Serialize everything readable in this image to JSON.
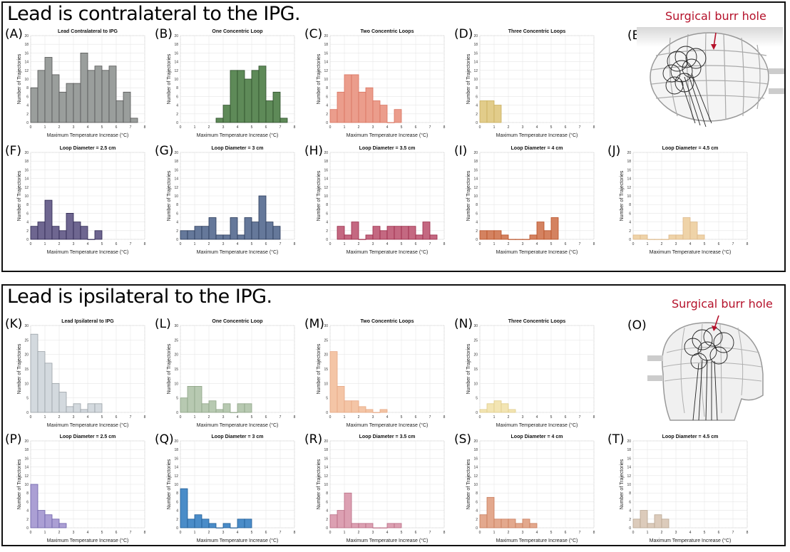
{
  "sections": [
    {
      "title": "Lead is contralateral to the IPG.",
      "head_label": "(E)",
      "burr_label": "Surgical burr hole"
    },
    {
      "title": "Lead is ipsilateral to the IPG.",
      "head_label": "(O)",
      "burr_label": "Surgical burr hole"
    }
  ],
  "chart_data": [
    {
      "id": "A",
      "label": "(A)",
      "type": "bar",
      "title": "Lead Contralateral to IPG",
      "xlabel": "Maximum Temperature Increase (°C)",
      "ylabel": "Number of Trajectories",
      "xlim": [
        0,
        8
      ],
      "ylim": [
        0,
        20
      ],
      "yticks": [
        0,
        2,
        4,
        6,
        8,
        10,
        12,
        14,
        16,
        18,
        20
      ],
      "bin_width": 0.5,
      "bin_start": 0,
      "values": [
        8,
        12,
        15,
        11,
        7,
        9,
        9,
        16,
        12,
        13,
        12,
        13,
        5,
        7,
        1
      ],
      "color": "#9a9e9c",
      "edge": "#555"
    },
    {
      "id": "B",
      "label": "(B)",
      "type": "bar",
      "title": "One Concentric Loop",
      "xlabel": "Maximum Temperature Increase (°C)",
      "ylabel": "Number of Trajectories",
      "xlim": [
        0,
        8
      ],
      "ylim": [
        0,
        20
      ],
      "yticks": [
        0,
        2,
        4,
        6,
        8,
        10,
        12,
        14,
        16,
        18,
        20
      ],
      "bin_width": 0.5,
      "bin_start": 2.5,
      "values": [
        1,
        4,
        12,
        12,
        10,
        12,
        13,
        5,
        7,
        1
      ],
      "color": "#5e8a58",
      "edge": "#2f4f2c"
    },
    {
      "id": "C",
      "label": "(C)",
      "type": "bar",
      "title": "Two Concentric Loops",
      "xlabel": "Maximum Temperature Increase (°C)",
      "ylabel": "Number of Trajectories",
      "xlim": [
        0,
        8
      ],
      "ylim": [
        0,
        20
      ],
      "yticks": [
        0,
        2,
        4,
        6,
        8,
        10,
        12,
        14,
        16,
        18,
        20
      ],
      "bin_width": 0.5,
      "bin_start": 0,
      "values": [
        3,
        7,
        11,
        11,
        7,
        8,
        5,
        4,
        0,
        3
      ],
      "color": "#eb9d8c",
      "edge": "#d9735f"
    },
    {
      "id": "D",
      "label": "(D)",
      "type": "bar",
      "title": "Three Concentric Loops",
      "xlabel": "Maximum Temperature Increase (°C)",
      "ylabel": "Number of Trajectories",
      "xlim": [
        0,
        8
      ],
      "ylim": [
        0,
        20
      ],
      "yticks": [
        0,
        2,
        4,
        6,
        8,
        10,
        12,
        14,
        16,
        18,
        20
      ],
      "bin_width": 0.5,
      "bin_start": 0,
      "values": [
        5,
        5,
        4
      ],
      "color": "#e2cc8a",
      "edge": "#c9ae5c"
    },
    {
      "id": "F",
      "label": "(F)",
      "type": "bar",
      "title": "Loop Diameter = 2.5 cm",
      "xlabel": "Maximum Temperature Increase (°C)",
      "ylabel": "Number of Trajectories",
      "xlim": [
        0,
        8
      ],
      "ylim": [
        0,
        20
      ],
      "yticks": [
        0,
        2,
        4,
        6,
        8,
        10,
        12,
        14,
        16,
        18,
        20
      ],
      "bin_width": 0.5,
      "bin_start": 0,
      "values": [
        3,
        4,
        9,
        3,
        2,
        6,
        4,
        3,
        0,
        2
      ],
      "color": "#6e6690",
      "edge": "#2c2550"
    },
    {
      "id": "G",
      "label": "(G)",
      "type": "bar",
      "title": "Loop Diameter = 3 cm",
      "xlabel": "Maximum Temperature Increase (°C)",
      "ylabel": "Number of Trajectories",
      "xlim": [
        0,
        8
      ],
      "ylim": [
        0,
        20
      ],
      "yticks": [
        0,
        2,
        4,
        6,
        8,
        10,
        12,
        14,
        16,
        18,
        20
      ],
      "bin_width": 0.5,
      "bin_start": 0,
      "values": [
        2,
        2,
        3,
        3,
        5,
        1,
        1,
        5,
        1,
        5,
        4,
        10,
        4,
        3
      ],
      "color": "#65789a",
      "edge": "#2a3a5a"
    },
    {
      "id": "H",
      "label": "(H)",
      "type": "bar",
      "title": "Loop Diameter = 3.5 cm",
      "xlabel": "Maximum Temperature Increase (°C)",
      "ylabel": "Number of Trajectories",
      "xlim": [
        0,
        8
      ],
      "ylim": [
        0,
        20
      ],
      "yticks": [
        0,
        2,
        4,
        6,
        8,
        10,
        12,
        14,
        16,
        18,
        20
      ],
      "bin_width": 0.5,
      "bin_start": 0.5,
      "values": [
        3,
        1,
        4,
        0,
        1,
        3,
        2,
        3,
        3,
        3,
        3,
        1,
        4,
        1
      ],
      "color": "#c46881",
      "edge": "#9a2846"
    },
    {
      "id": "I",
      "label": "(I)",
      "type": "bar",
      "title": "Loop Diameter = 4 cm",
      "xlabel": "Maximum Temperature Increase (°C)",
      "ylabel": "Number of Trajectories",
      "xlim": [
        0,
        8
      ],
      "ylim": [
        0,
        20
      ],
      "yticks": [
        0,
        2,
        4,
        6,
        8,
        10,
        12,
        14,
        16,
        18,
        20
      ],
      "bin_width": 0.5,
      "bin_start": 0,
      "values": [
        2,
        2,
        2,
        1,
        0,
        0,
        0,
        1,
        4,
        2,
        5
      ],
      "color": "#d48260",
      "edge": "#b84f25"
    },
    {
      "id": "J",
      "label": "(J)",
      "type": "bar",
      "title": "Loop Diameter = 4.5 cm",
      "xlabel": "Maximum Temperature Increase (°C)",
      "ylabel": "Number of Trajectories",
      "xlim": [
        0,
        8
      ],
      "ylim": [
        0,
        20
      ],
      "yticks": [
        0,
        2,
        4,
        6,
        8,
        10,
        12,
        14,
        16,
        18,
        20
      ],
      "bin_width": 0.5,
      "bin_start": 0,
      "values": [
        1,
        1,
        0,
        0,
        0,
        1,
        1,
        5,
        4,
        1
      ],
      "color": "#efd3a8",
      "edge": "#dcb889"
    },
    {
      "id": "K",
      "label": "(K)",
      "type": "bar",
      "title": "Lead Ipsilateral to IPG",
      "xlabel": "Maximum Temperature Increase (°C)",
      "ylabel": "Number of Trajectories",
      "xlim": [
        0,
        8
      ],
      "ylim": [
        0,
        30
      ],
      "yticks": [
        0,
        5,
        10,
        15,
        20,
        25,
        30
      ],
      "bin_width": 0.5,
      "bin_start": 0,
      "values": [
        27,
        21,
        17,
        10,
        7,
        2,
        3,
        1,
        3,
        3
      ],
      "color": "#d3d9de",
      "edge": "#9aa1a6"
    },
    {
      "id": "L",
      "label": "(L)",
      "type": "bar",
      "title": "One Concentric Loop",
      "xlabel": "Maximum Temperature Increase (°C)",
      "ylabel": "Number of Trajectories",
      "xlim": [
        0,
        8
      ],
      "ylim": [
        0,
        30
      ],
      "yticks": [
        0,
        5,
        10,
        15,
        20,
        25,
        30
      ],
      "bin_width": 0.5,
      "bin_start": 0,
      "values": [
        5,
        9,
        9,
        3,
        4,
        1,
        3,
        0,
        3,
        3
      ],
      "color": "#b7c9b1",
      "edge": "#8ea486"
    },
    {
      "id": "M",
      "label": "(M)",
      "type": "bar",
      "title": "Two Concentric Loops",
      "xlabel": "Maximum Temperature Increase (°C)",
      "ylabel": "Number of Trajectories",
      "xlim": [
        0,
        8
      ],
      "ylim": [
        0,
        30
      ],
      "yticks": [
        0,
        5,
        10,
        15,
        20,
        25,
        30
      ],
      "bin_width": 0.5,
      "bin_start": 0,
      "values": [
        21,
        9,
        4,
        4,
        2,
        1,
        0,
        1
      ],
      "color": "#f4c5a6",
      "edge": "#e7a783"
    },
    {
      "id": "N",
      "label": "(N)",
      "type": "bar",
      "title": "Three Concentric Loops",
      "xlabel": "Maximum Temperature Increase (°C)",
      "ylabel": "Number of Trajectories",
      "xlim": [
        0,
        8
      ],
      "ylim": [
        0,
        30
      ],
      "yticks": [
        0,
        5,
        10,
        15,
        20,
        25,
        30
      ],
      "bin_width": 0.5,
      "bin_start": 0,
      "values": [
        1,
        3,
        4,
        3,
        1
      ],
      "color": "#f3e5b3",
      "edge": "#dfcc8a"
    },
    {
      "id": "P",
      "label": "(P)",
      "type": "bar",
      "title": "Loop Diameter = 2.5 cm",
      "xlabel": "Maximum Temperature Increase (°C)",
      "ylabel": "Number of Trajectories",
      "xlim": [
        0,
        8
      ],
      "ylim": [
        0,
        20
      ],
      "yticks": [
        0,
        2,
        4,
        6,
        8,
        10,
        12,
        14,
        16,
        18,
        20
      ],
      "bin_width": 0.5,
      "bin_start": 0,
      "values": [
        10,
        4,
        3,
        2,
        1
      ],
      "color": "#ab9fd4",
      "edge": "#6c5fa8"
    },
    {
      "id": "Q",
      "label": "(Q)",
      "type": "bar",
      "title": "Loop Diameter = 3 cm",
      "xlabel": "Maximum Temperature Increase (°C)",
      "ylabel": "Number of Trajectories",
      "xlim": [
        0,
        8
      ],
      "ylim": [
        0,
        20
      ],
      "yticks": [
        0,
        2,
        4,
        6,
        8,
        10,
        12,
        14,
        16,
        18,
        20
      ],
      "bin_width": 0.5,
      "bin_start": 0,
      "values": [
        9,
        2,
        3,
        2,
        1,
        0,
        1,
        0,
        2,
        2
      ],
      "color": "#4a8cc8",
      "edge": "#1f5c95"
    },
    {
      "id": "R",
      "label": "(R)",
      "type": "bar",
      "title": "Loop Diameter = 3.5 cm",
      "xlabel": "Maximum Temperature Increase (°C)",
      "ylabel": "Number of Trajectories",
      "xlim": [
        0,
        8
      ],
      "ylim": [
        0,
        20
      ],
      "yticks": [
        0,
        2,
        4,
        6,
        8,
        10,
        12,
        14,
        16,
        18,
        20
      ],
      "bin_width": 0.5,
      "bin_start": 0,
      "values": [
        3,
        4,
        8,
        1,
        1,
        1,
        0,
        0,
        1,
        1
      ],
      "color": "#dca0b2",
      "edge": "#b86a82"
    },
    {
      "id": "S",
      "label": "(S)",
      "type": "bar",
      "title": "Loop Diameter = 4 cm",
      "xlabel": "Maximum Temperature Increase (°C)",
      "ylabel": "Number of Trajectories",
      "xlim": [
        0,
        8
      ],
      "ylim": [
        0,
        20
      ],
      "yticks": [
        0,
        2,
        4,
        6,
        8,
        10,
        12,
        14,
        16,
        18,
        20
      ],
      "bin_width": 0.5,
      "bin_start": 0,
      "values": [
        3,
        7,
        2,
        2,
        2,
        1,
        2,
        1
      ],
      "color": "#e3a88d",
      "edge": "#c77a5a"
    },
    {
      "id": "T",
      "label": "(T)",
      "type": "bar",
      "title": "Loop Diameter = 4.5 cm",
      "xlabel": "Maximum Temperature Increase (°C)",
      "ylabel": "Number of Trajectories",
      "xlim": [
        0,
        8
      ],
      "ylim": [
        0,
        20
      ],
      "yticks": [
        0,
        2,
        4,
        6,
        8,
        10,
        12,
        14,
        16,
        18,
        20
      ],
      "bin_width": 0.5,
      "bin_start": 0,
      "values": [
        2,
        4,
        1,
        3,
        2
      ],
      "color": "#dccbbb",
      "edge": "#b8a591"
    }
  ]
}
